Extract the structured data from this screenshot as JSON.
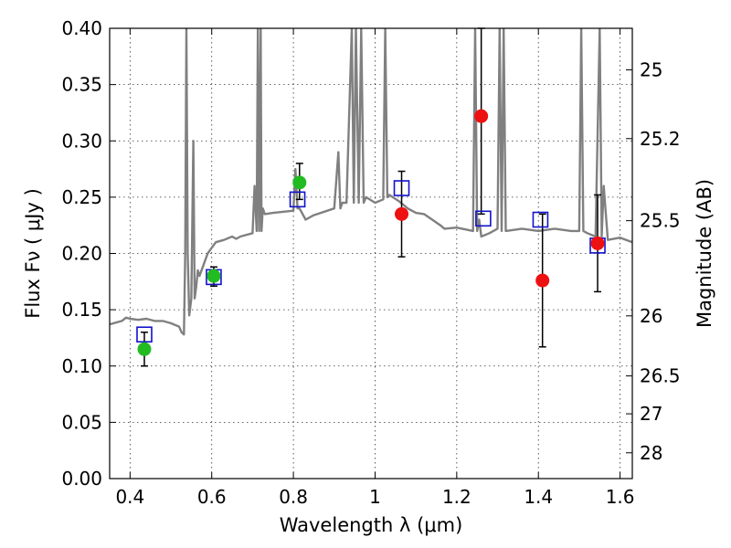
{
  "chart_data": {
    "type": "scatter",
    "xlabel": "Wavelength  λ (μm)",
    "ylabel": "Flux  Fν  ( μJy )",
    "ylabel_right": "Magnitude (AB)",
    "xlim": [
      0.35,
      1.63
    ],
    "ylim": [
      0.0,
      0.4
    ],
    "grid": true,
    "x_ticks": [
      {
        "value": 0.4,
        "label": "0.4"
      },
      {
        "value": 0.6,
        "label": "0.6"
      },
      {
        "value": 0.8,
        "label": "0.8"
      },
      {
        "value": 1.0,
        "label": "1"
      },
      {
        "value": 1.2,
        "label": "1.2"
      },
      {
        "value": 1.4,
        "label": "1.4"
      },
      {
        "value": 1.6,
        "label": "1.6"
      }
    ],
    "y_ticks": [
      {
        "value": 0.0,
        "label": "0.00"
      },
      {
        "value": 0.05,
        "label": "0.05"
      },
      {
        "value": 0.1,
        "label": "0.10"
      },
      {
        "value": 0.15,
        "label": "0.15"
      },
      {
        "value": 0.2,
        "label": "0.20"
      },
      {
        "value": 0.25,
        "label": "0.25"
      },
      {
        "value": 0.3,
        "label": "0.30"
      },
      {
        "value": 0.35,
        "label": "0.35"
      },
      {
        "value": 0.4,
        "label": "0.40"
      }
    ],
    "mag_ticks": [
      {
        "mag": 25,
        "label": "25"
      },
      {
        "mag": 25.2,
        "label": "25.2"
      },
      {
        "mag": 25.5,
        "label": "25.5"
      },
      {
        "mag": 26,
        "label": "26"
      },
      {
        "mag": 26.5,
        "label": "26.5"
      },
      {
        "mag": 27,
        "label": "27"
      },
      {
        "mag": 28,
        "label": "28"
      }
    ],
    "colors": {
      "model": "#808080",
      "optical": "#22bb22",
      "nir": "#ee1111",
      "model_box": "#1111cc",
      "errorbar": "#000000"
    },
    "model_spectrum": {
      "x": [
        0.35,
        0.38,
        0.39,
        0.4,
        0.42,
        0.44,
        0.46,
        0.48,
        0.5,
        0.52,
        0.526,
        0.532,
        0.535,
        0.538,
        0.541,
        0.545,
        0.55,
        0.555,
        0.558,
        0.562,
        0.566,
        0.57,
        0.58,
        0.59,
        0.6,
        0.61,
        0.63,
        0.65,
        0.66,
        0.67,
        0.7,
        0.705,
        0.71,
        0.713,
        0.716,
        0.72,
        0.722,
        0.725,
        0.73,
        0.75,
        0.8,
        0.805,
        0.81,
        0.815,
        0.83,
        0.85,
        0.9,
        0.91,
        0.915,
        0.92,
        0.93,
        0.943,
        0.948,
        0.953,
        0.96,
        0.966,
        0.972,
        0.978,
        1.0,
        1.02,
        1.025,
        1.03,
        1.035,
        1.06,
        1.08,
        1.1,
        1.12,
        1.14,
        1.16,
        1.17,
        1.2,
        1.24,
        1.245,
        1.25,
        1.255,
        1.26,
        1.28,
        1.3,
        1.305,
        1.31,
        1.315,
        1.32,
        1.36,
        1.4,
        1.44,
        1.48,
        1.5,
        1.505,
        1.51,
        1.52,
        1.54,
        1.55,
        1.555,
        1.56,
        1.57,
        1.6,
        1.63
      ],
      "y": [
        0.137,
        0.14,
        0.143,
        0.142,
        0.141,
        0.142,
        0.14,
        0.14,
        0.138,
        0.135,
        0.13,
        0.128,
        0.2,
        0.4,
        0.2,
        0.145,
        0.16,
        0.3,
        0.16,
        0.17,
        0.185,
        0.18,
        0.19,
        0.2,
        0.205,
        0.21,
        0.212,
        0.215,
        0.213,
        0.215,
        0.218,
        0.26,
        0.22,
        0.4,
        0.22,
        0.4,
        0.22,
        0.24,
        0.235,
        0.236,
        0.238,
        0.275,
        0.24,
        0.24,
        0.23,
        0.234,
        0.24,
        0.29,
        0.24,
        0.245,
        0.245,
        0.4,
        0.245,
        0.4,
        0.245,
        0.4,
        0.245,
        0.25,
        0.245,
        0.248,
        0.4,
        0.25,
        0.252,
        0.246,
        0.24,
        0.236,
        0.235,
        0.23,
        0.225,
        0.222,
        0.223,
        0.22,
        0.4,
        0.22,
        0.23,
        0.215,
        0.218,
        0.222,
        0.4,
        0.22,
        0.4,
        0.22,
        0.222,
        0.22,
        0.222,
        0.22,
        0.22,
        0.4,
        0.22,
        0.218,
        0.215,
        0.4,
        0.215,
        0.26,
        0.212,
        0.214,
        0.21
      ]
    },
    "optical_points": [
      {
        "x": 0.435,
        "y": 0.115,
        "yerr_low": 0.1,
        "yerr_high": 0.13
      },
      {
        "x": 0.605,
        "y": 0.18,
        "yerr_low": 0.171,
        "yerr_high": 0.188
      },
      {
        "x": 0.815,
        "y": 0.263,
        "yerr_low": 0.248,
        "yerr_high": 0.28
      }
    ],
    "nir_points": [
      {
        "x": 1.065,
        "y": 0.235,
        "yerr_low": 0.197,
        "yerr_high": 0.273
      },
      {
        "x": 1.26,
        "y": 0.322,
        "yerr_low": 0.235,
        "yerr_high": 0.4
      },
      {
        "x": 1.41,
        "y": 0.176,
        "yerr_low": 0.117,
        "yerr_high": 0.235
      },
      {
        "x": 1.545,
        "y": 0.209,
        "yerr_low": 0.166,
        "yerr_high": 0.252
      }
    ],
    "model_boxes": [
      {
        "x": 0.435,
        "y": 0.128
      },
      {
        "x": 0.605,
        "y": 0.179
      },
      {
        "x": 0.81,
        "y": 0.248
      },
      {
        "x": 1.065,
        "y": 0.258
      },
      {
        "x": 1.265,
        "y": 0.231
      },
      {
        "x": 1.405,
        "y": 0.23
      },
      {
        "x": 1.545,
        "y": 0.207
      }
    ]
  }
}
